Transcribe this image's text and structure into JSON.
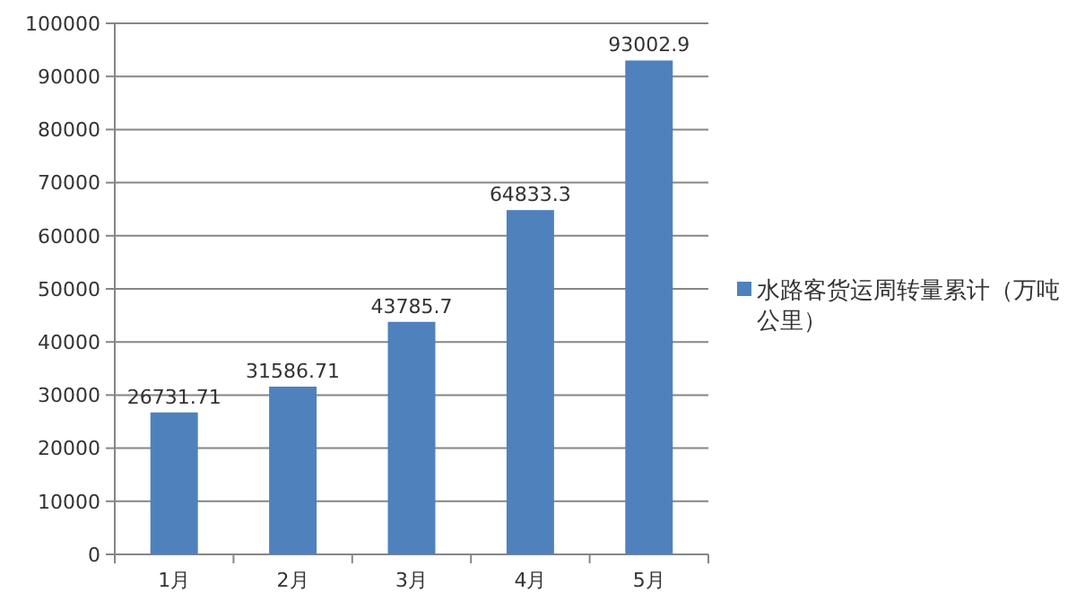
{
  "chart_data": {
    "type": "bar",
    "categories": [
      "1月",
      "2月",
      "3月",
      "4月",
      "5月"
    ],
    "series": [
      {
        "name": "水路客货运周转量累计（万吨公里）",
        "color": "#4f81bd",
        "values": [
          26731.71,
          31586.71,
          43785.7,
          64833.3,
          93002.9
        ]
      }
    ],
    "ylim": [
      0,
      100000
    ],
    "yticks": [
      0,
      10000,
      20000,
      30000,
      40000,
      50000,
      60000,
      70000,
      80000,
      90000,
      100000
    ],
    "grid": "y",
    "legend": "right",
    "data_labels": true
  }
}
